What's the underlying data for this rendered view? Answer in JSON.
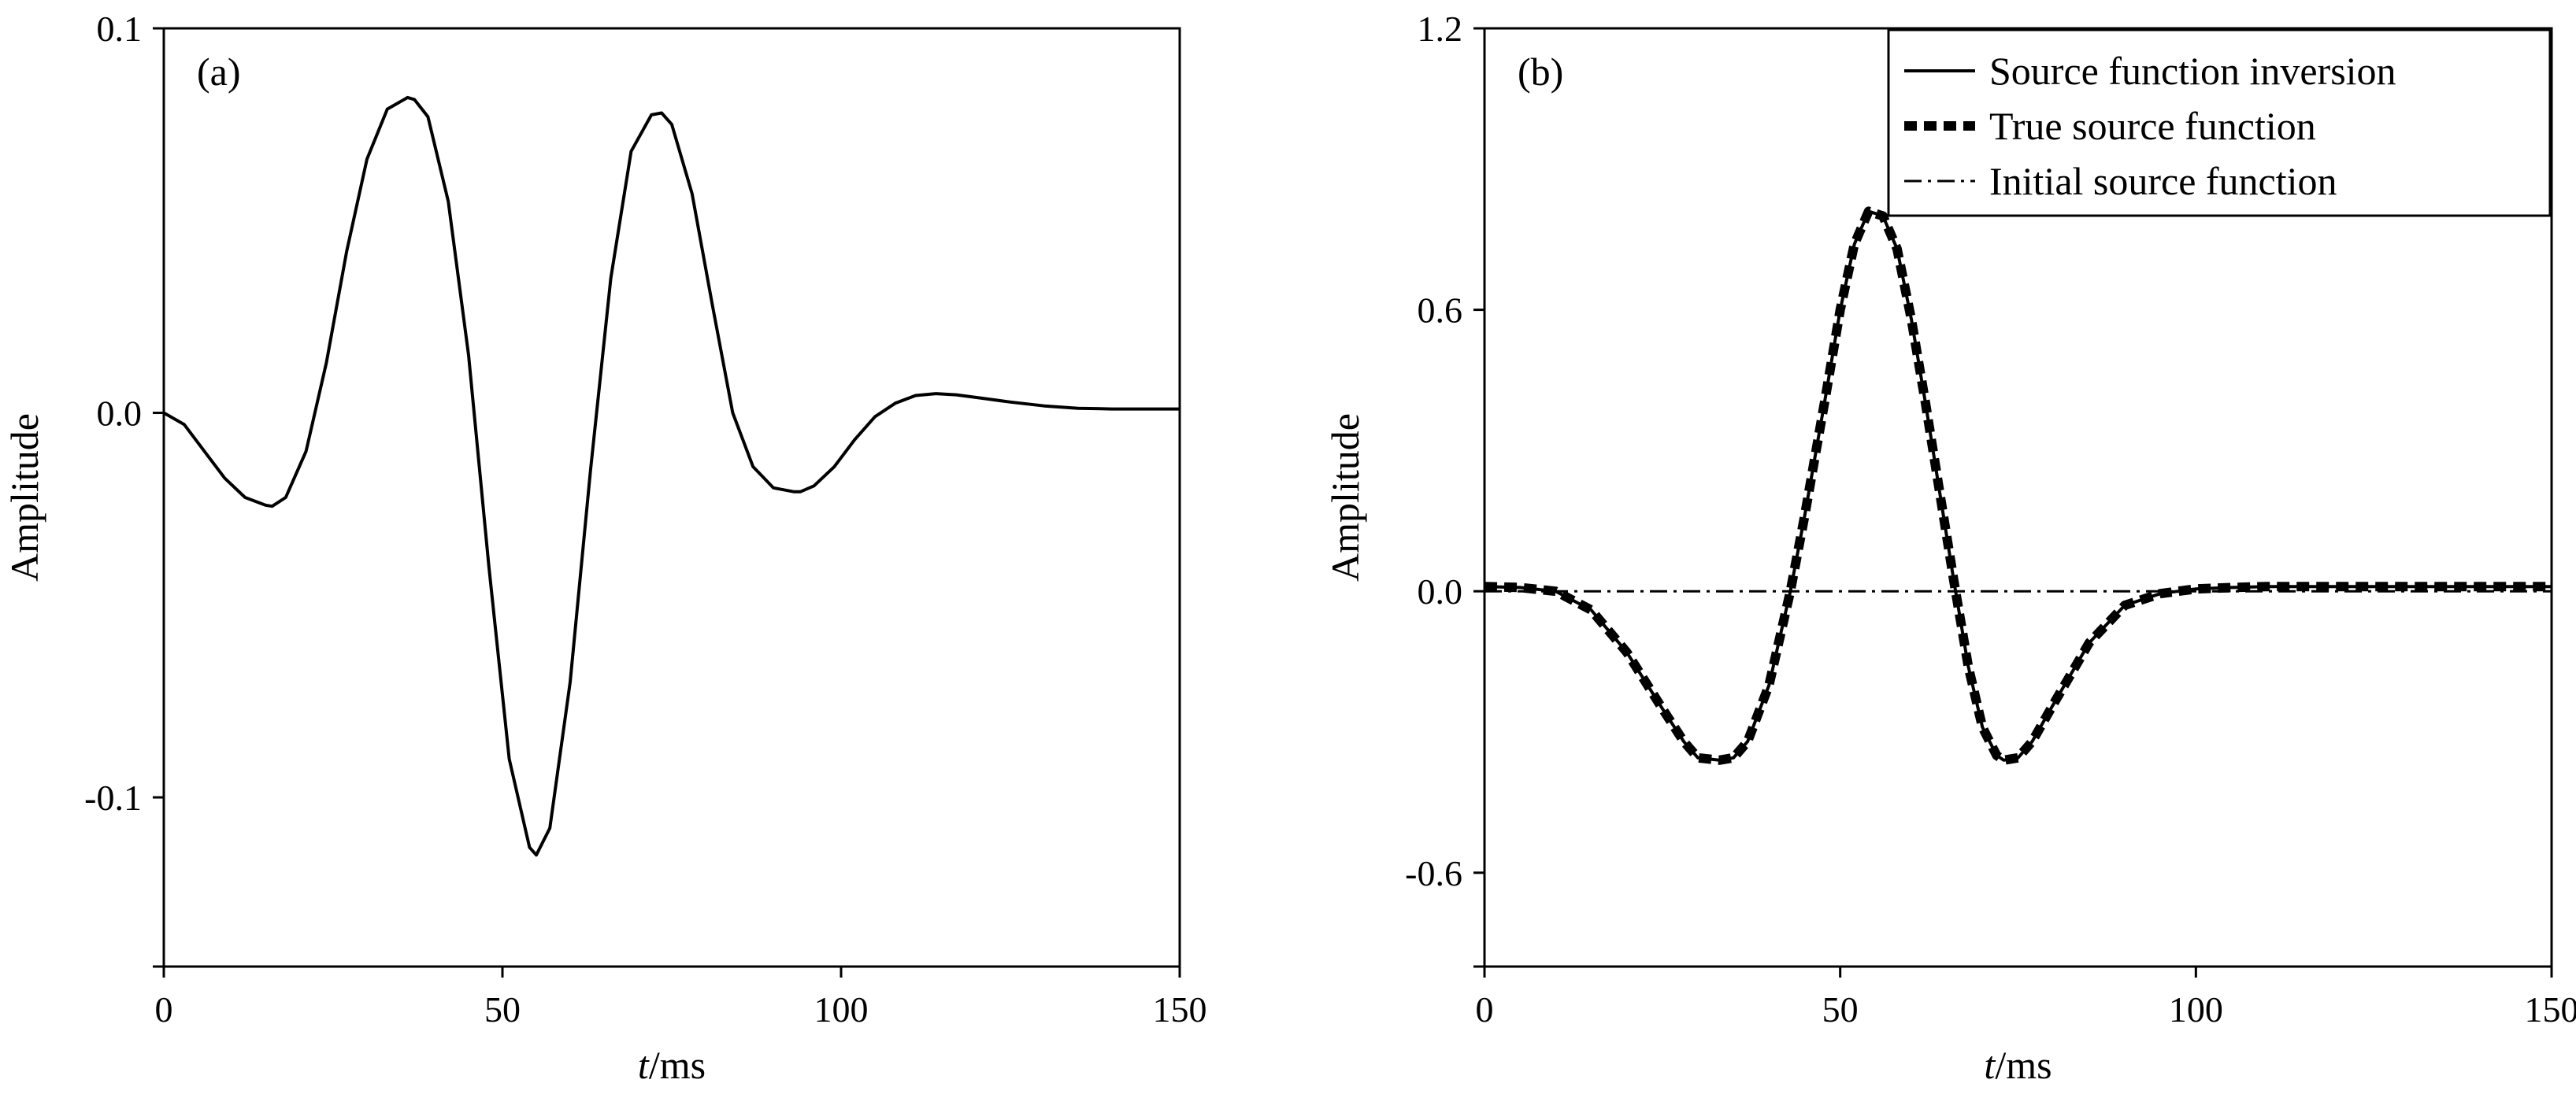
{
  "chart_data": [
    {
      "type": "line",
      "panel_label": "(a)",
      "xlabel_italic": "t",
      "xlabel_unit": "/ms",
      "ylabel": "Amplitude",
      "xlim": [
        0,
        150
      ],
      "ylim": [
        -0.144,
        0.1
      ],
      "xticks": [
        0,
        50,
        100,
        150
      ],
      "xtick_labels": [
        "0",
        "50",
        "100",
        "150"
      ],
      "yticks": [
        0.1,
        0.0,
        -0.1
      ],
      "ytick_labels": [
        "0.1",
        "0.0",
        "-0.1"
      ],
      "grid": false,
      "series": [
        {
          "style": "solid",
          "x": [
            0,
            3,
            6,
            9,
            12,
            15,
            16,
            18,
            21,
            24,
            27,
            30,
            33,
            36,
            37,
            39,
            42,
            45,
            48,
            51,
            54,
            55,
            57,
            60,
            63,
            66,
            69,
            72,
            73.5,
            75,
            78,
            81,
            84,
            87,
            90,
            93,
            94,
            96,
            99,
            102,
            105,
            108,
            111,
            114,
            117,
            120,
            125,
            130,
            135,
            140,
            145,
            150
          ],
          "y": [
            0.0,
            -0.003,
            -0.01,
            -0.017,
            -0.022,
            -0.024,
            -0.0243,
            -0.022,
            -0.01,
            0.013,
            0.042,
            0.066,
            0.079,
            0.082,
            0.0815,
            0.077,
            0.055,
            0.015,
            -0.04,
            -0.09,
            -0.113,
            -0.115,
            -0.108,
            -0.07,
            -0.015,
            0.035,
            0.068,
            0.0775,
            0.078,
            0.075,
            0.057,
            0.028,
            0.0,
            -0.014,
            -0.0195,
            -0.0205,
            -0.0205,
            -0.019,
            -0.014,
            -0.007,
            -0.001,
            0.0025,
            0.0045,
            0.005,
            0.0047,
            0.004,
            0.0028,
            0.0018,
            0.0012,
            0.001,
            0.001,
            0.001
          ]
        }
      ]
    },
    {
      "type": "line",
      "panel_label": "(b)",
      "xlabel_italic": "t",
      "xlabel_unit": "/ms",
      "ylabel": "Amplitude",
      "xlim": [
        0,
        150
      ],
      "ylim": [
        -0.8,
        1.2
      ],
      "xticks": [
        0,
        50,
        100,
        150
      ],
      "xtick_labels": [
        "0",
        "50",
        "100",
        "150"
      ],
      "yticks": [
        1.2,
        0.6,
        0.0,
        -0.6
      ],
      "ytick_labels": [
        "1.2",
        "0.6",
        "0.0",
        "-0.6"
      ],
      "grid": false,
      "legend_position": "top-right",
      "series": [
        {
          "name": "Initial source function",
          "style": "dashdot",
          "x": [
            0,
            150
          ],
          "y": [
            0.0,
            0.0
          ]
        },
        {
          "name": "True source function",
          "style": "dashed",
          "x": [
            0,
            5,
            10,
            15,
            20,
            25,
            28,
            30,
            33,
            35,
            37,
            40,
            43,
            45,
            48,
            50,
            52,
            54,
            56,
            58,
            60,
            62,
            64,
            66,
            68,
            70,
            72,
            73,
            75,
            77,
            80,
            85,
            90,
            95,
            100,
            105,
            110,
            120,
            130,
            140,
            150
          ],
          "y": [
            0.01,
            0.008,
            0.0,
            -0.04,
            -0.13,
            -0.25,
            -0.32,
            -0.355,
            -0.36,
            -0.355,
            -0.32,
            -0.2,
            0.0,
            0.16,
            0.42,
            0.6,
            0.74,
            0.81,
            0.8,
            0.73,
            0.58,
            0.4,
            0.21,
            0.02,
            -0.16,
            -0.29,
            -0.35,
            -0.36,
            -0.355,
            -0.32,
            -0.24,
            -0.11,
            -0.03,
            -0.005,
            0.005,
            0.008,
            0.01,
            0.01,
            0.01,
            0.01,
            0.01
          ]
        },
        {
          "name": "Source function inversion",
          "style": "solid",
          "x": [
            0,
            5,
            10,
            15,
            20,
            25,
            28,
            30,
            33,
            35,
            37,
            40,
            43,
            45,
            48,
            50,
            52,
            54,
            56,
            58,
            60,
            62,
            64,
            66,
            68,
            70,
            72,
            73,
            75,
            77,
            80,
            85,
            90,
            95,
            100,
            105,
            110,
            120,
            130,
            140,
            150
          ],
          "y": [
            0.01,
            0.008,
            0.0,
            -0.04,
            -0.13,
            -0.25,
            -0.32,
            -0.355,
            -0.36,
            -0.355,
            -0.32,
            -0.2,
            0.0,
            0.16,
            0.42,
            0.6,
            0.74,
            0.81,
            0.8,
            0.73,
            0.58,
            0.4,
            0.21,
            0.02,
            -0.16,
            -0.29,
            -0.35,
            -0.36,
            -0.355,
            -0.32,
            -0.24,
            -0.11,
            -0.03,
            -0.005,
            0.005,
            0.008,
            0.01,
            0.01,
            0.01,
            0.01,
            0.01
          ]
        }
      ],
      "legend_order": [
        "Source function inversion",
        "True source function",
        "Initial source function"
      ]
    }
  ]
}
